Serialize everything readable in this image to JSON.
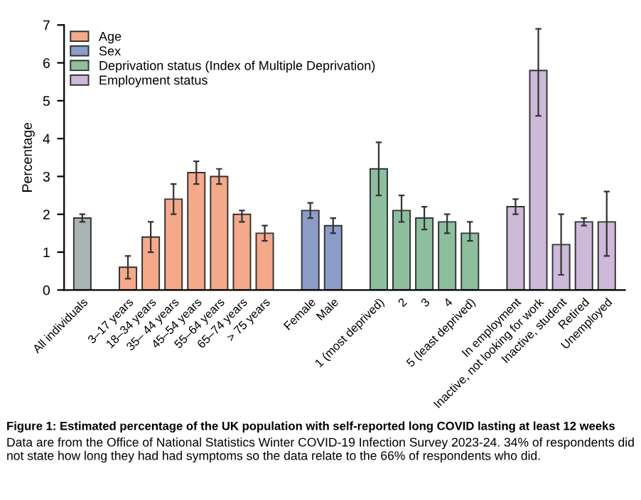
{
  "chart_data": {
    "type": "bar",
    "title": "Figure 1: Estimated percentage of the UK population with self-reported long COVID lasting at least 12 weeks",
    "annotations": [
      "Data are from the Office of National Statistics Winter COVID-19 Infection Survey 2023-24. 34% of respondents did not state how long they had had symptoms so the data relate to the 66% of respondents who did."
    ],
    "ylabel": "Percentage",
    "categories": [
      "All individuals",
      null,
      "3–17 years",
      "18–34 years",
      "35– 44 years",
      "45–54 years",
      "55–64 years",
      "65–74 years",
      "> 75 years",
      null,
      "Female",
      "Male",
      null,
      "1 (most deprived)",
      "2",
      "3",
      "4",
      "5 (least deprived)",
      null,
      "In employment",
      "Inactive, not looking for work",
      "Inactive, student",
      "Retired",
      "Unemployed"
    ],
    "series": [
      {
        "color": "#a9b3b3",
        "values": [
          1.9,
          null,
          null,
          null,
          null,
          null,
          null,
          null,
          null,
          null,
          null,
          null,
          null,
          null,
          null,
          null,
          null,
          null,
          null,
          null,
          null,
          null,
          null,
          null
        ],
        "errors": [
          [
            1.8,
            2.0
          ],
          null,
          null,
          null,
          null,
          null,
          null,
          null,
          null,
          null,
          null,
          null,
          null,
          null,
          null,
          null,
          null,
          null,
          null,
          null,
          null,
          null,
          null,
          null
        ]
      },
      {
        "name": "Age",
        "color": "#f4a98a",
        "values": [
          null,
          null,
          0.6,
          1.4,
          2.4,
          3.1,
          3.0,
          2.0,
          1.5,
          null,
          null,
          null,
          null,
          null,
          null,
          null,
          null,
          null,
          null,
          null,
          null,
          null,
          null,
          null
        ],
        "errors": [
          null,
          null,
          [
            0.3,
            0.9
          ],
          [
            1.0,
            1.8
          ],
          [
            2.0,
            2.8
          ],
          [
            2.8,
            3.4
          ],
          [
            2.8,
            3.2
          ],
          [
            1.8,
            2.1
          ],
          [
            1.3,
            1.7
          ],
          null,
          null,
          null,
          null,
          null,
          null,
          null,
          null,
          null,
          null,
          null,
          null,
          null,
          null,
          null
        ]
      },
      {
        "name": "Sex",
        "color": "#8c9dc8",
        "values": [
          null,
          null,
          null,
          null,
          null,
          null,
          null,
          null,
          null,
          null,
          2.1,
          1.7,
          null,
          null,
          null,
          null,
          null,
          null,
          null,
          null,
          null,
          null,
          null,
          null
        ],
        "errors": [
          null,
          null,
          null,
          null,
          null,
          null,
          null,
          null,
          null,
          null,
          [
            1.9,
            2.3
          ],
          [
            1.5,
            1.9
          ],
          null,
          null,
          null,
          null,
          null,
          null,
          null,
          null,
          null,
          null,
          null,
          null
        ]
      },
      {
        "name": "Deprivation status (Index of Multiple Deprivation)",
        "color": "#8dbf9e",
        "values": [
          null,
          null,
          null,
          null,
          null,
          null,
          null,
          null,
          null,
          null,
          null,
          null,
          null,
          3.2,
          2.1,
          1.9,
          1.8,
          1.5,
          null,
          null,
          null,
          null,
          null,
          null
        ],
        "errors": [
          null,
          null,
          null,
          null,
          null,
          null,
          null,
          null,
          null,
          null,
          null,
          null,
          null,
          [
            2.5,
            3.9
          ],
          [
            1.8,
            2.5
          ],
          [
            1.6,
            2.2
          ],
          [
            1.5,
            2.0
          ],
          [
            1.3,
            1.8
          ],
          null,
          null,
          null,
          null,
          null,
          null
        ]
      },
      {
        "name": "Employment status",
        "color": "#cdb9d8",
        "values": [
          null,
          null,
          null,
          null,
          null,
          null,
          null,
          null,
          null,
          null,
          null,
          null,
          null,
          null,
          null,
          null,
          null,
          null,
          null,
          2.2,
          5.8,
          1.2,
          1.8,
          1.8
        ],
        "errors": [
          null,
          null,
          null,
          null,
          null,
          null,
          null,
          null,
          null,
          null,
          null,
          null,
          null,
          null,
          null,
          null,
          null,
          null,
          null,
          [
            2.0,
            2.4
          ],
          [
            4.6,
            6.9
          ],
          [
            0.4,
            2.0
          ],
          [
            1.7,
            1.9
          ],
          [
            0.9,
            2.6
          ]
        ]
      }
    ],
    "ylim": [
      0,
      7
    ],
    "yticks": [
      0,
      1,
      2,
      3,
      4,
      5,
      6,
      7
    ],
    "grid": false,
    "legend": "top left"
  }
}
